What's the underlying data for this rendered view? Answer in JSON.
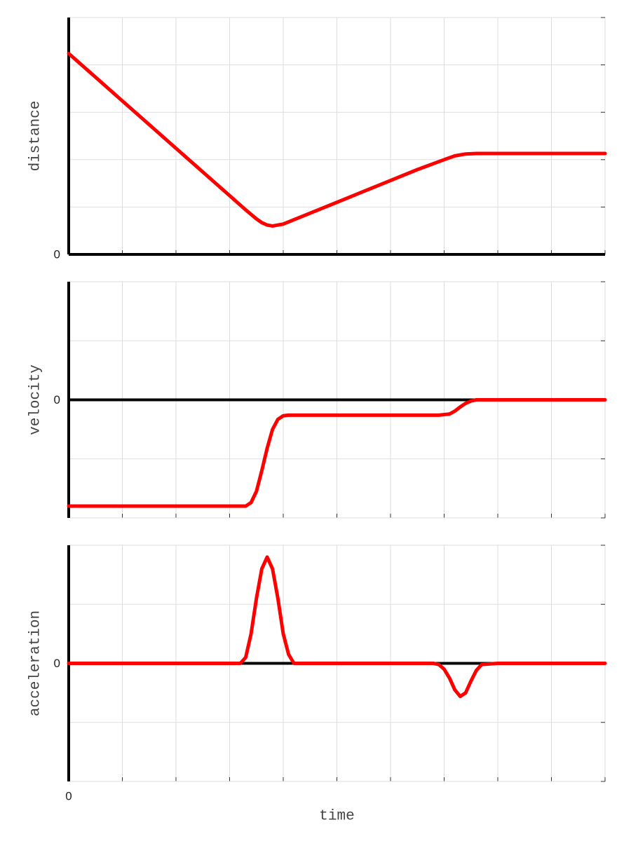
{
  "chart_data": [
    {
      "type": "line",
      "ylabel": "distance",
      "color": "#ff0000",
      "grid": true,
      "xlim": [
        0,
        10
      ],
      "ylim": [
        0,
        5
      ],
      "xticks": [
        {
          "value": 0,
          "label": null
        },
        {
          "value": 1,
          "label": null
        },
        {
          "value": 2,
          "label": null
        },
        {
          "value": 3,
          "label": null
        },
        {
          "value": 4,
          "label": null
        },
        {
          "value": 5,
          "label": null
        },
        {
          "value": 6,
          "label": null
        },
        {
          "value": 7,
          "label": null
        },
        {
          "value": 8,
          "label": null
        },
        {
          "value": 9,
          "label": null
        },
        {
          "value": 10,
          "label": null
        }
      ],
      "yticks": [
        0,
        {
          "value": 1,
          "label": null
        },
        {
          "value": 2,
          "label": null
        },
        {
          "value": 3,
          "label": null
        },
        {
          "value": 4,
          "label": null
        },
        {
          "value": 5,
          "label": null
        }
      ],
      "x": [
        0,
        0.5,
        1,
        1.5,
        2,
        2.5,
        3,
        3.3,
        3.5,
        3.6,
        3.7,
        3.8,
        3.9,
        4,
        4.5,
        5,
        5.5,
        6,
        6.5,
        7,
        7.2,
        7.4,
        7.6,
        8,
        9,
        10
      ],
      "values": [
        4.24,
        3.74,
        3.24,
        2.74,
        2.24,
        1.74,
        1.24,
        0.94,
        0.75,
        0.67,
        0.62,
        0.6,
        0.62,
        0.64,
        0.87,
        1.1,
        1.33,
        1.56,
        1.79,
        2.0,
        2.08,
        2.12,
        2.13,
        2.13,
        2.13,
        2.13
      ]
    },
    {
      "type": "line",
      "ylabel": "velocity",
      "color": "#ff0000",
      "grid": true,
      "xlim": [
        0,
        10
      ],
      "ylim": [
        -2,
        2
      ],
      "xticks": [
        {
          "value": 0,
          "label": null
        },
        {
          "value": 1,
          "label": null
        },
        {
          "value": 2,
          "label": null
        },
        {
          "value": 3,
          "label": null
        },
        {
          "value": 4,
          "label": null
        },
        {
          "value": 5,
          "label": null
        },
        {
          "value": 6,
          "label": null
        },
        {
          "value": 7,
          "label": null
        },
        {
          "value": 8,
          "label": null
        },
        {
          "value": 9,
          "label": null
        },
        {
          "value": 10,
          "label": null
        }
      ],
      "yticks": [
        {
          "value": -2,
          "label": null
        },
        {
          "value": -1,
          "label": null
        },
        0,
        {
          "value": 1,
          "label": null
        },
        {
          "value": 2,
          "label": null
        }
      ],
      "x": [
        0,
        1,
        2,
        3,
        3.3,
        3.4,
        3.5,
        3.6,
        3.7,
        3.8,
        3.9,
        4,
        4.1,
        5,
        6,
        6.9,
        7.1,
        7.2,
        7.3,
        7.4,
        7.5,
        7.6,
        8,
        9,
        10
      ],
      "values": [
        -1.8,
        -1.8,
        -1.8,
        -1.8,
        -1.8,
        -1.74,
        -1.55,
        -1.2,
        -0.82,
        -0.5,
        -0.33,
        -0.27,
        -0.26,
        -0.26,
        -0.26,
        -0.26,
        -0.24,
        -0.19,
        -0.12,
        -0.06,
        -0.02,
        0,
        0,
        0,
        0
      ]
    },
    {
      "type": "line",
      "ylabel": "acceleration",
      "xlabel": "time",
      "color": "#ff0000",
      "grid": true,
      "xlim": [
        0,
        10
      ],
      "ylim": [
        -2,
        2
      ],
      "xticks": [
        0,
        {
          "value": 1,
          "label": null
        },
        {
          "value": 2,
          "label": null
        },
        {
          "value": 3,
          "label": null
        },
        {
          "value": 4,
          "label": null
        },
        {
          "value": 5,
          "label": null
        },
        {
          "value": 6,
          "label": null
        },
        {
          "value": 7,
          "label": null
        },
        {
          "value": 8,
          "label": null
        },
        {
          "value": 9,
          "label": null
        },
        {
          "value": 10,
          "label": null
        }
      ],
      "yticks": [
        {
          "value": -2,
          "label": null
        },
        {
          "value": -1,
          "label": null
        },
        0,
        {
          "value": 1,
          "label": null
        },
        {
          "value": 2,
          "label": null
        }
      ],
      "x": [
        0,
        1,
        2,
        3,
        3.2,
        3.3,
        3.4,
        3.5,
        3.6,
        3.7,
        3.8,
        3.9,
        4,
        4.1,
        4.2,
        5,
        6,
        6.8,
        6.9,
        7,
        7.1,
        7.2,
        7.3,
        7.4,
        7.5,
        7.6,
        7.7,
        8,
        9,
        10
      ],
      "values": [
        0,
        0,
        0,
        0,
        0,
        0.1,
        0.5,
        1.1,
        1.6,
        1.8,
        1.6,
        1.1,
        0.5,
        0.15,
        0,
        0,
        0,
        0,
        -0.02,
        -0.1,
        -0.25,
        -0.45,
        -0.56,
        -0.5,
        -0.3,
        -0.12,
        -0.02,
        0,
        0,
        0
      ]
    }
  ]
}
